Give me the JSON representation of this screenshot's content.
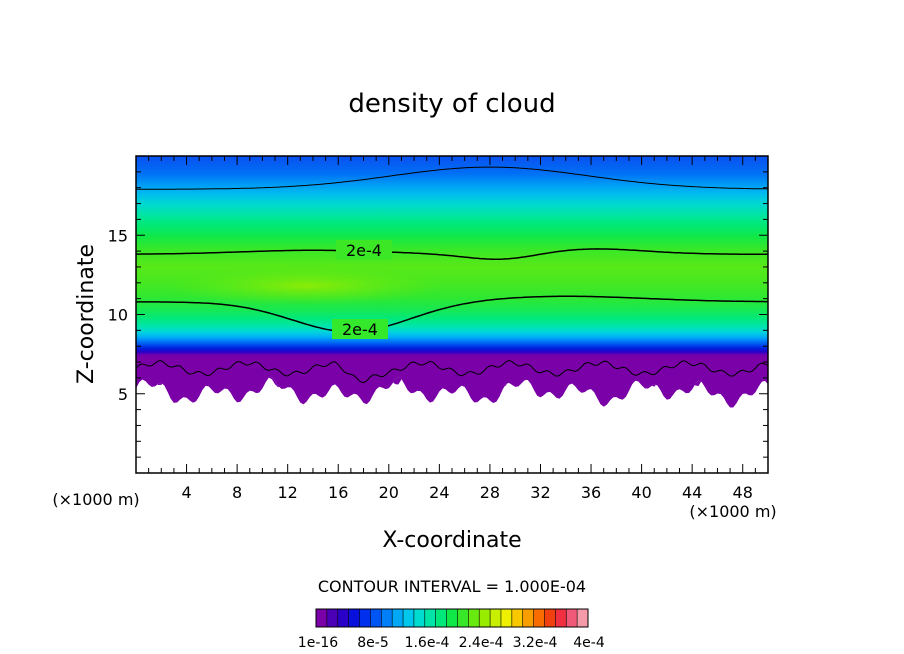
{
  "chart_data": {
    "type": "heatmap",
    "title": "density of cloud",
    "xlabel": "X-coordinate",
    "ylabel": "Z-coordinate",
    "x_unit": "(×1000 m)",
    "z_unit": "(×1000 m)",
    "xlim": [
      0,
      50
    ],
    "ylim": [
      0,
      20
    ],
    "x_ticks": [
      4,
      8,
      12,
      16,
      20,
      24,
      28,
      32,
      36,
      40,
      44,
      48
    ],
    "y_ticks": [
      5,
      10,
      15
    ],
    "contour_interval_text": "CONTOUR INTERVAL = 1.000E-04",
    "contour_labels": [
      "2e-4",
      "2e-4"
    ],
    "colorbar": {
      "colors": [
        "#7a00a8",
        "#4b00b8",
        "#2a00c8",
        "#0a10dc",
        "#0030ee",
        "#0055f5",
        "#0080f8",
        "#00a8f5",
        "#00c8ec",
        "#00dcd0",
        "#00e4a8",
        "#00e87a",
        "#10e848",
        "#38e828",
        "#68ea10",
        "#98ec00",
        "#c8ee00",
        "#eef000",
        "#f8c800",
        "#f89e00",
        "#f86c00",
        "#f04010",
        "#f03040",
        "#f05a78",
        "#f59aa8"
      ],
      "tick_labels": [
        "1e-16",
        "8e-5",
        "1.6e-4",
        "2.4e-4",
        "3.2e-4",
        "4e-4"
      ]
    }
  }
}
